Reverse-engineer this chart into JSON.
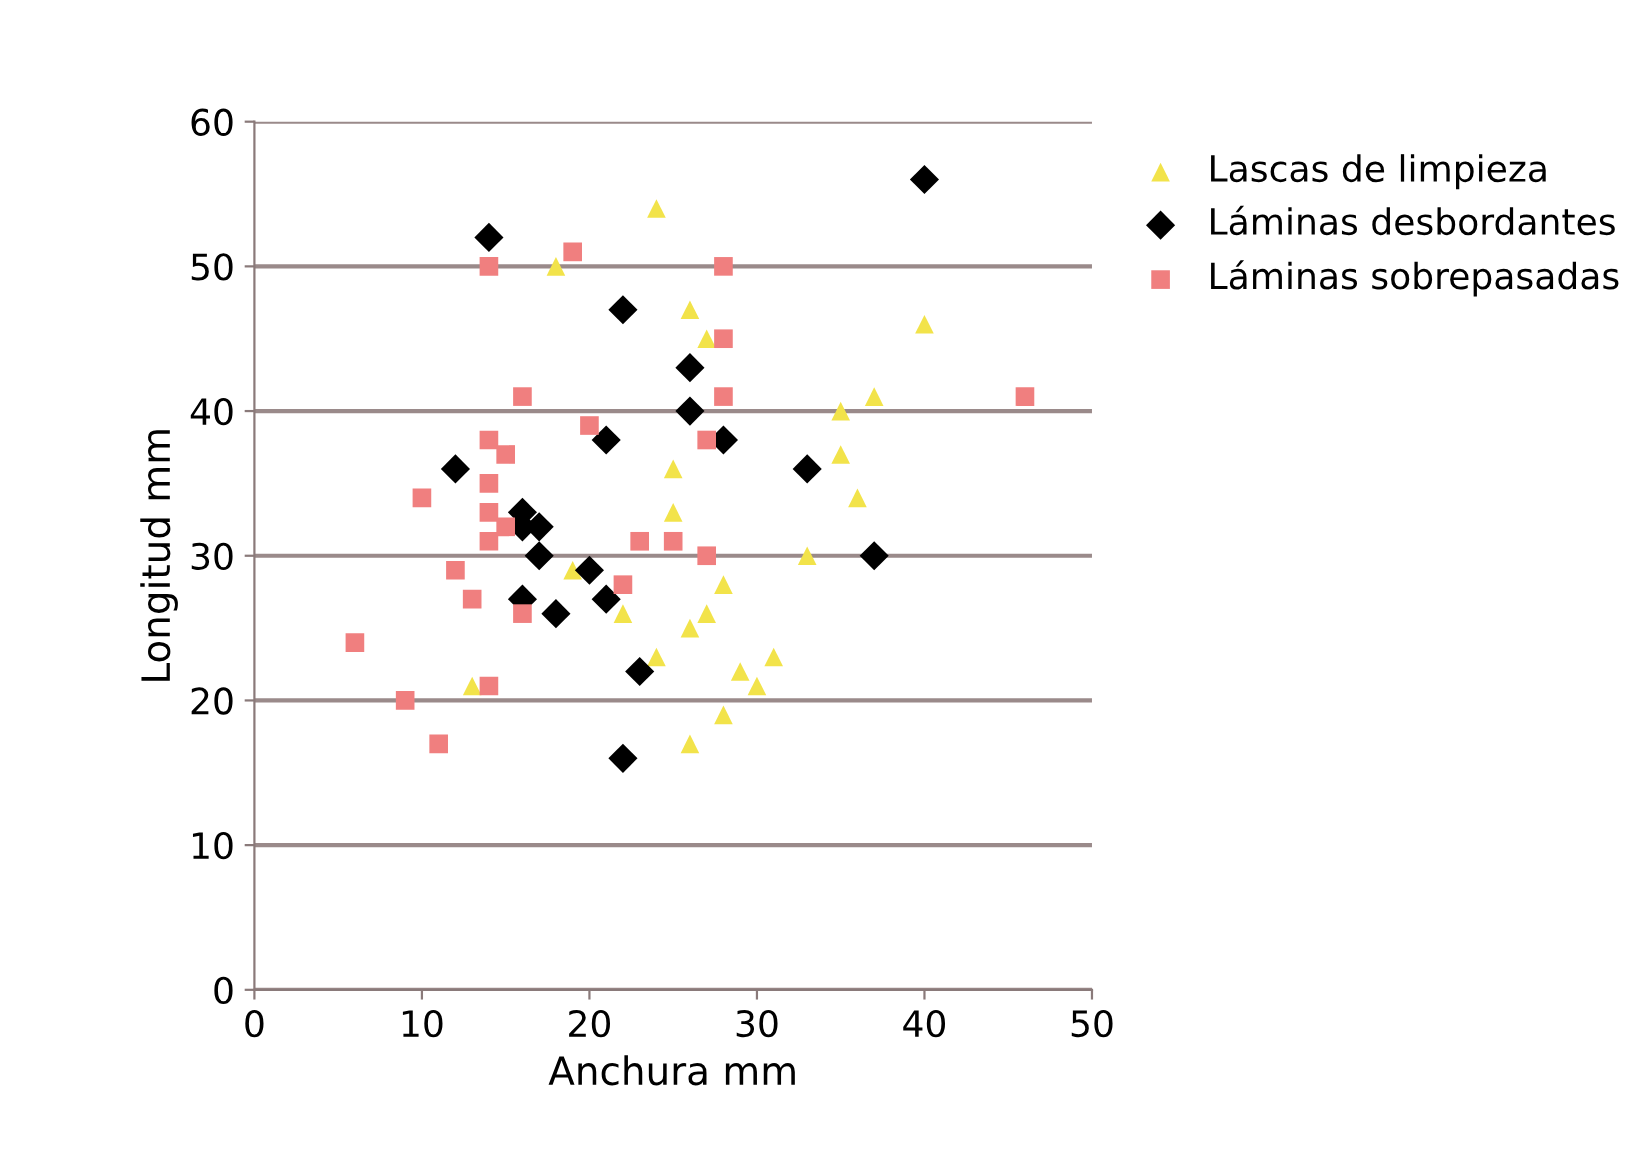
{
  "chart_data": {
    "type": "scatter",
    "xlabel": "Anchura mm",
    "ylabel": "Longitud mm",
    "xlim": [
      0,
      50
    ],
    "xticks": [
      0,
      10,
      20,
      30,
      40,
      50
    ],
    "ylim": [
      0,
      60
    ],
    "yticks": [
      0,
      10,
      20,
      30,
      40,
      50,
      60
    ],
    "grid": "y",
    "legend": "right",
    "series": [
      {
        "name": "Lascas de limpieza",
        "color": "#f2e34a",
        "marker": "triangle",
        "x": [
          24,
          18,
          26,
          27,
          40,
          37,
          35,
          35,
          25,
          36,
          25,
          33,
          19,
          28,
          27,
          22,
          26,
          24,
          31,
          29,
          13,
          30,
          28,
          26
        ],
        "values": [
          54,
          50,
          47,
          45,
          46,
          41,
          40,
          37,
          36,
          34,
          33,
          30,
          29,
          28,
          26,
          26,
          25,
          23,
          23,
          22,
          21,
          21,
          19,
          17
        ]
      },
      {
        "name": "Láminas desbordantes",
        "color": "#000000",
        "marker": "diamond",
        "x": [
          40,
          14,
          22,
          26,
          26,
          28,
          21,
          12,
          33,
          16,
          16,
          17,
          17,
          37,
          16,
          21,
          20,
          18,
          23,
          22
        ],
        "values": [
          56,
          52,
          47,
          43,
          40,
          38,
          38,
          36,
          36,
          33,
          32,
          32,
          30,
          30,
          27,
          27,
          29,
          26,
          22,
          16
        ]
      },
      {
        "name": "Láminas sobrepasadas",
        "color": "#f07f7f",
        "marker": "square",
        "x": [
          14,
          19,
          16,
          20,
          14,
          15,
          14,
          10,
          14,
          15,
          14,
          23,
          25,
          27,
          28,
          28,
          28,
          46,
          27,
          12,
          13,
          16,
          22,
          6,
          14,
          9,
          11
        ],
        "values": [
          50,
          51,
          41,
          39,
          38,
          37,
          35,
          34,
          33,
          32,
          31,
          31,
          31,
          30,
          50,
          45,
          41,
          41,
          38,
          29,
          27,
          26,
          28,
          24,
          21,
          20,
          17
        ]
      }
    ]
  }
}
